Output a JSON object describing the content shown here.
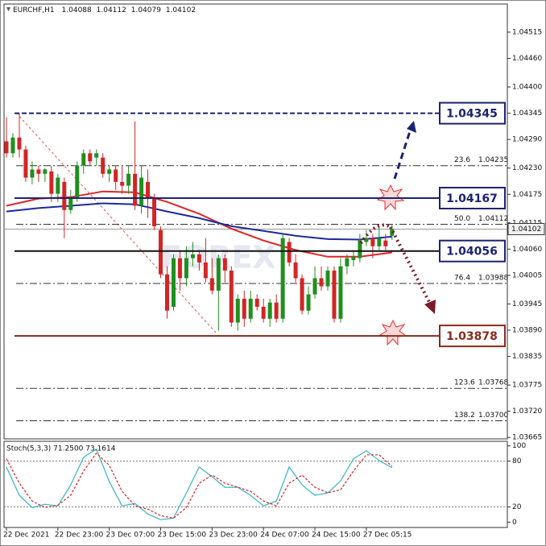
{
  "chart_data": {
    "type": "candlestick",
    "header": {
      "symbol": "EURCHF,H1",
      "open": 1.04088,
      "high": 1.04112,
      "low": 1.04079,
      "close": 1.04102
    },
    "watermark": "FOREX",
    "ylim": [
      1.03662,
      1.04574
    ],
    "yticks": [
      {
        "value": 1.04515,
        "label": "1.04515"
      },
      {
        "value": 1.0446,
        "label": "1.04460"
      },
      {
        "value": 1.044,
        "label": "1.04400"
      },
      {
        "value": 1.04345,
        "label": "1.04345"
      },
      {
        "value": 1.0429,
        "label": "1.04290"
      },
      {
        "value": 1.0423,
        "label": "1.04230"
      },
      {
        "value": 1.04175,
        "label": "1.04175"
      },
      {
        "value": 1.04115,
        "label": "1.04115"
      },
      {
        "value": 1.0406,
        "label": "1.04060"
      },
      {
        "value": 1.04005,
        "label": "1.04005"
      },
      {
        "value": 1.03945,
        "label": "1.03945"
      },
      {
        "value": 1.0389,
        "label": "1.03890"
      },
      {
        "value": 1.03835,
        "label": "1.03835"
      },
      {
        "value": 1.03775,
        "label": "1.03775"
      },
      {
        "value": 1.0372,
        "label": "1.03720"
      },
      {
        "value": 1.03665,
        "label": "1.03665"
      }
    ],
    "xticks": [
      {
        "value": 0,
        "label": "22 Dec 2021"
      },
      {
        "value": 8,
        "label": "22 Dec 23:00"
      },
      {
        "value": 16,
        "label": "23 Dec 07:00"
      },
      {
        "value": 24,
        "label": "23 Dec 15:00"
      },
      {
        "value": 32,
        "label": "23 Dec 23:00"
      },
      {
        "value": 40,
        "label": "24 Dec 07:00"
      },
      {
        "value": 48,
        "label": "24 Dec 15:00"
      },
      {
        "value": 56,
        "label": "27 Dec 05:15"
      }
    ],
    "up_color": "#1f8f1f",
    "down_color": "#d42424",
    "open": [
      1.04286,
      1.04261,
      1.04294,
      1.04269,
      1.0421,
      1.04227,
      1.04218,
      1.04223,
      1.04176,
      1.04201,
      1.04142,
      1.04168,
      1.04235,
      1.04261,
      1.04252,
      1.04252,
      1.04218,
      1.04227,
      1.04201,
      1.04193,
      1.04218,
      1.04151,
      1.04201,
      1.04168,
      1.041,
      1.04007,
      1.03939,
      1.04041,
      1.03999,
      1.04041,
      1.04049,
      1.04032,
      1.03999,
      1.03973,
      1.04041,
      1.04015,
      1.03906,
      1.03956,
      1.03914,
      1.03956,
      1.03939,
      1.03914,
      1.03948,
      1.03914,
      1.04075,
      1.04032,
      1.03999,
      1.03931,
      1.03965,
      1.03999,
      1.03982,
      1.04015,
      1.03914,
      1.04024,
      1.04037,
      1.04041,
      1.04075,
      1.04083,
      1.04066,
      1.04078,
      1.04088
    ],
    "high": [
      1.04337,
      1.04303,
      1.04345,
      1.04277,
      1.04244,
      1.04235,
      1.0423,
      1.04235,
      1.04218,
      1.0421,
      1.04184,
      1.04244,
      1.04269,
      1.04269,
      1.04269,
      1.04261,
      1.04235,
      1.04235,
      1.04235,
      1.04235,
      1.04328,
      1.04235,
      1.04227,
      1.04176,
      1.04108,
      1.04024,
      1.04049,
      1.04058,
      1.04066,
      1.04075,
      1.04058,
      1.04083,
      1.04041,
      1.04049,
      1.04049,
      1.04024,
      1.03965,
      1.03973,
      1.03973,
      1.03965,
      1.03956,
      1.03956,
      1.03965,
      1.04092,
      1.04083,
      1.04049,
      1.04007,
      1.03982,
      1.04024,
      1.04024,
      1.04024,
      1.04024,
      1.04041,
      1.04049,
      1.04058,
      1.04092,
      1.041,
      1.04092,
      1.04108,
      1.04092,
      1.04112
    ],
    "low": [
      1.04252,
      1.04252,
      1.04252,
      1.04201,
      1.04196,
      1.04201,
      1.04201,
      1.04159,
      1.04159,
      1.04083,
      1.04134,
      1.04159,
      1.04218,
      1.04235,
      1.04235,
      1.0421,
      1.04201,
      1.04184,
      1.04176,
      1.04176,
      1.04142,
      1.04134,
      1.04125,
      1.041,
      1.03999,
      1.03914,
      1.03931,
      1.03973,
      1.03982,
      1.04024,
      1.04015,
      1.0399,
      1.03965,
      1.03889,
      1.0399,
      1.03897,
      1.03889,
      1.03897,
      1.03906,
      1.03931,
      1.03906,
      1.03897,
      1.03906,
      1.03906,
      1.04024,
      1.0399,
      1.03923,
      1.03923,
      1.03956,
      1.03973,
      1.03973,
      1.03906,
      1.03906,
      1.04007,
      1.04024,
      1.04032,
      1.04066,
      1.04041,
      1.04058,
      1.04058,
      1.04079
    ],
    "close": [
      1.04261,
      1.04294,
      1.04269,
      1.0421,
      1.04227,
      1.04218,
      1.04227,
      1.04176,
      1.0421,
      1.04142,
      1.04168,
      1.04235,
      1.04261,
      1.04244,
      1.04261,
      1.04218,
      1.04227,
      1.04201,
      1.04193,
      1.04218,
      1.04151,
      1.0421,
      1.04168,
      1.04108,
      1.04007,
      1.03931,
      1.04041,
      1.03999,
      1.04041,
      1.04049,
      1.04032,
      1.03999,
      1.03973,
      1.04041,
      1.04015,
      1.03906,
      1.03956,
      1.03914,
      1.03956,
      1.03939,
      1.03914,
      1.03948,
      1.03914,
      1.04083,
      1.04032,
      1.03999,
      1.03931,
      1.03965,
      1.03999,
      1.03982,
      1.04015,
      1.03914,
      1.04024,
      1.04041,
      1.04044,
      1.04078,
      1.04083,
      1.04066,
      1.04083,
      1.04066,
      1.04102
    ],
    "moving_averages": [
      {
        "color": "#e02424",
        "x": [
          0,
          5,
          10,
          15,
          20,
          25,
          30,
          35,
          40,
          45,
          50,
          55,
          60
        ],
        "values": [
          1.04151,
          1.04166,
          1.04169,
          1.04181,
          1.04179,
          1.04159,
          1.04134,
          1.04103,
          1.04078,
          1.04058,
          1.04044,
          1.04044,
          1.04053
        ]
      },
      {
        "color": "#1c2a9c",
        "x": [
          0,
          5,
          10,
          15,
          20,
          25,
          30,
          35,
          40,
          45,
          50,
          55,
          60
        ],
        "values": [
          1.04139,
          1.04146,
          1.04151,
          1.04156,
          1.04154,
          1.04139,
          1.04125,
          1.04108,
          1.04098,
          1.04088,
          1.04081,
          1.0408,
          1.04086
        ]
      }
    ],
    "last_price": 1.04102,
    "levels": [
      {
        "value": 1.04345,
        "color": "#1c2370",
        "style": "dashed"
      },
      {
        "value": 1.04167,
        "color": "#1c2370",
        "style": "solid"
      },
      {
        "value": 1.04056,
        "color": "#111111",
        "box_color": "#1c2370",
        "style": "solid"
      },
      {
        "value": 1.03878,
        "color": "#8a2a1a",
        "style": "solid"
      }
    ],
    "fib_levels": [
      {
        "ratio": "23.6",
        "value": 1.04235,
        "label": "1.04235"
      },
      {
        "ratio": "50.0",
        "value": 1.04112,
        "label": "1.04112"
      },
      {
        "ratio": "76.4",
        "value": 1.03988,
        "label": "1.03988"
      },
      {
        "ratio": "123.6",
        "value": 1.03768,
        "label": "1.03768"
      },
      {
        "ratio": "138.2",
        "value": 1.037,
        "label": "1.03700"
      }
    ],
    "stochastic": {
      "label": "Stoch(5,3,3) 71.2500 73.1614",
      "ylim": [
        -7,
        106
      ],
      "yticks": [
        0,
        20,
        80,
        100
      ],
      "level_lines": [
        20,
        80
      ],
      "x": [
        0,
        2,
        4,
        6,
        8,
        10,
        12,
        14,
        16,
        18,
        20,
        22,
        24,
        26,
        28,
        30,
        32,
        34,
        36,
        38,
        40,
        42,
        44,
        46,
        48,
        50,
        52,
        54,
        56,
        58,
        60
      ],
      "main": {
        "color": "#35b4c8",
        "values": [
          72.3,
          35.1,
          19.1,
          23.4,
          21.3,
          48.9,
          85.1,
          95.7,
          53.2,
          21.3,
          24.5,
          10.6,
          3.2,
          5.3,
          38.3,
          72.3,
          59.6,
          45.7,
          45.7,
          35.1,
          21.3,
          27.7,
          72.3,
          48.9,
          35.1,
          38.3,
          54.3,
          83.0,
          93.6,
          80.9,
          71.25
        ]
      },
      "signal": {
        "color": "#e02424",
        "values": [
          83.0,
          51.1,
          27.7,
          19.1,
          22.3,
          35.1,
          67.0,
          90.4,
          74.5,
          40.4,
          21.3,
          17.0,
          8.5,
          5.3,
          19.1,
          51.1,
          61.7,
          51.1,
          45.7,
          40.4,
          27.7,
          21.3,
          51.1,
          61.7,
          45.7,
          38.3,
          42.6,
          67.0,
          88.3,
          88.3,
          73.1614
        ]
      }
    }
  }
}
